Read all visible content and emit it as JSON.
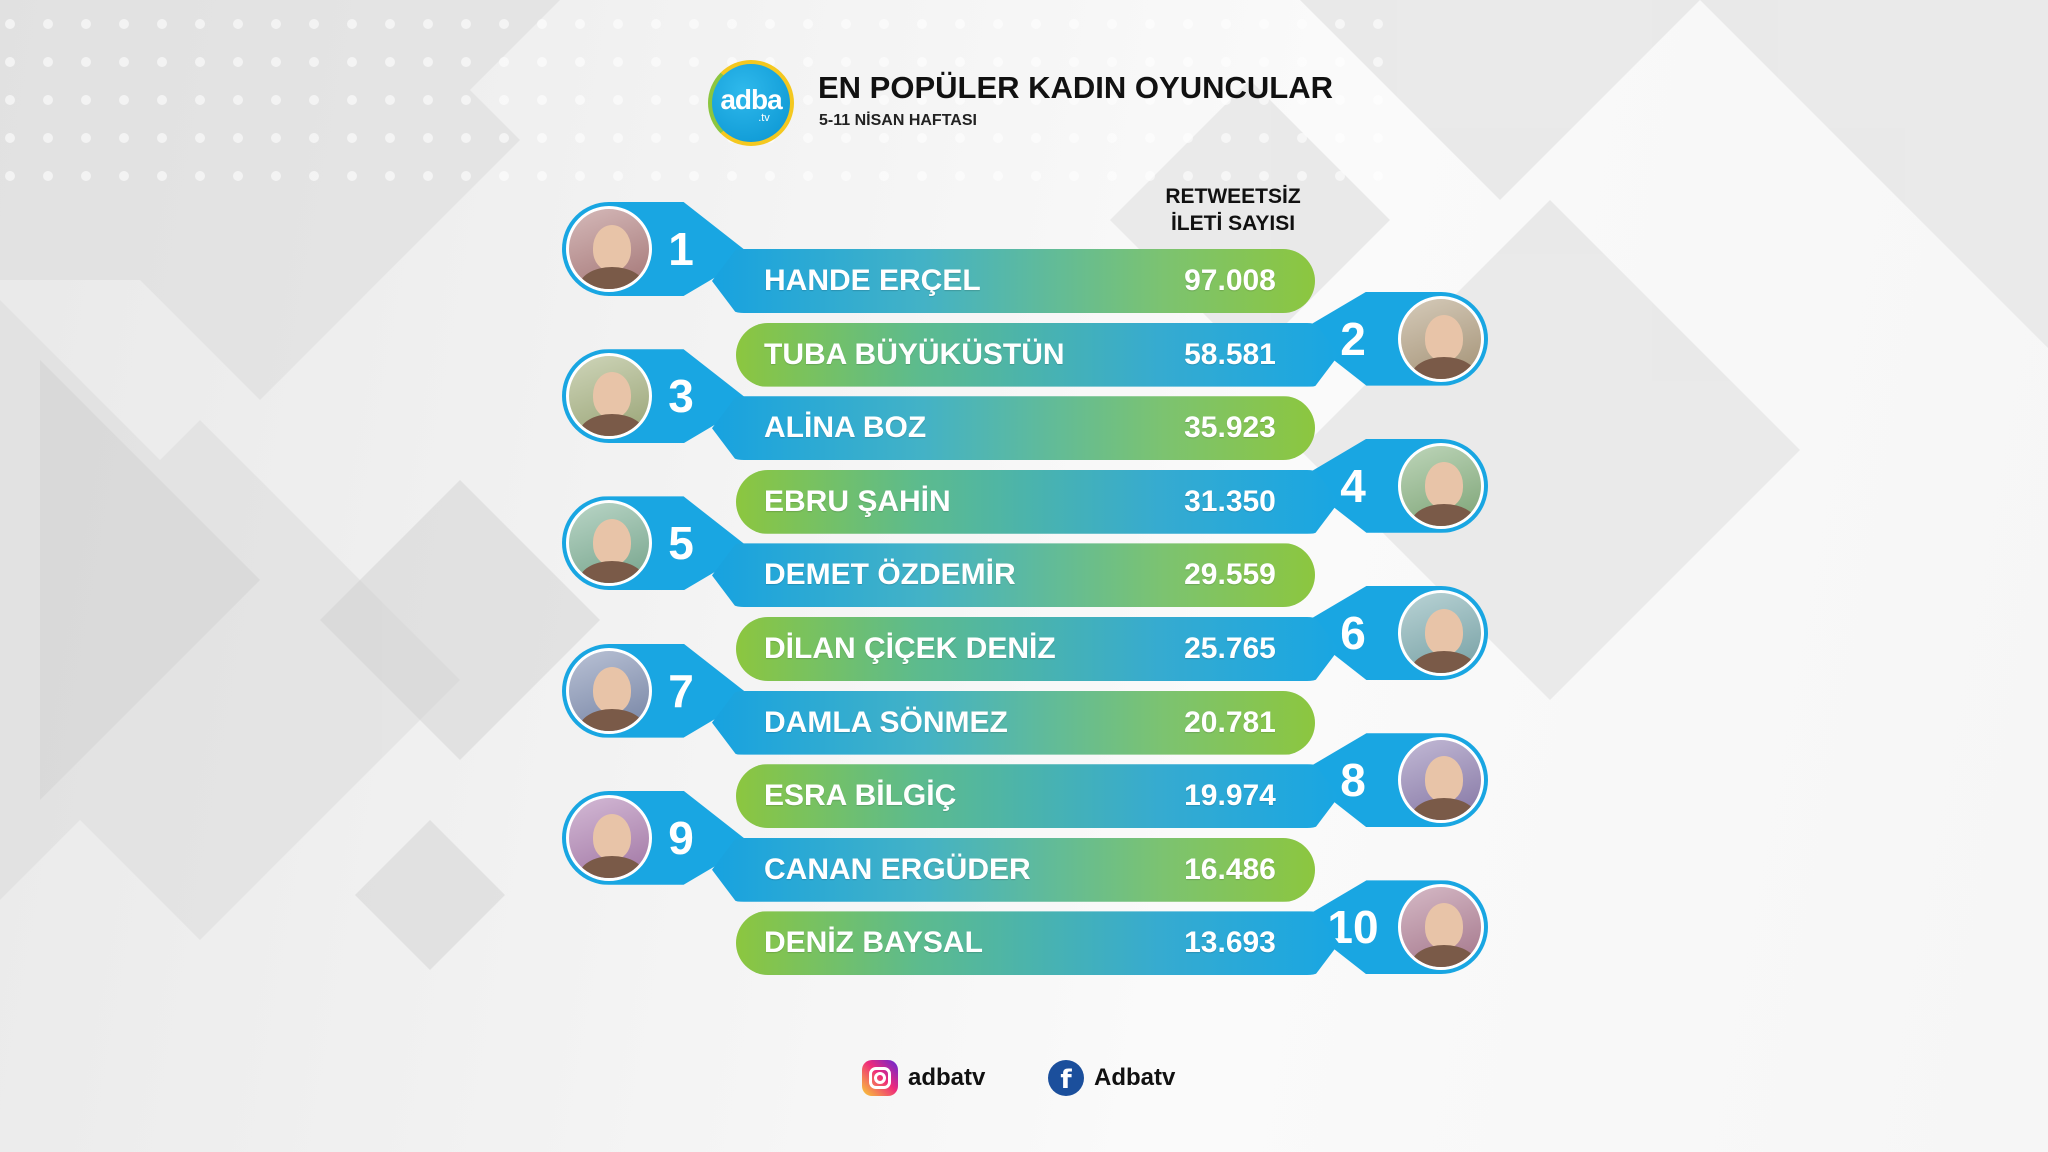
{
  "header": {
    "logo_text": "adba",
    "logo_sub": ".tv",
    "title": "EN POPÜLER KADIN OYUNCULAR",
    "subtitle": "5-11 NİSAN HAFTASI"
  },
  "column_header": {
    "line1": "RETWEETSİZ",
    "line2": "İLETİ SAYISI"
  },
  "chart_data": {
    "type": "bar",
    "title": "EN POPÜLER KADIN OYUNCULAR",
    "subtitle": "5-11 NİSAN HAFTASI",
    "ylabel": "RETWEETSİZ İLETİ SAYISI",
    "categories": [
      "HANDE ERÇEL",
      "TUBA BÜYÜKÜSTÜN",
      "ALİNA BOZ",
      "EBRU ŞAHİN",
      "DEMET ÖZDEMİR",
      "DİLAN ÇİÇEK DENİZ",
      "DAMLA SÖNMEZ",
      "ESRA BİLGİÇ",
      "CANAN ERGÜDER",
      "DENİZ BAYSAL"
    ],
    "ranks": [
      "1",
      "2",
      "3",
      "4",
      "5",
      "6",
      "7",
      "8",
      "9",
      "10"
    ],
    "values": [
      97008,
      58581,
      35923,
      31350,
      29559,
      25765,
      20781,
      19974,
      16486,
      13693
    ],
    "value_labels": [
      "97.008",
      "58.581",
      "35.923",
      "31.350",
      "29.559",
      "25.765",
      "20.781",
      "19.974",
      "16.486",
      "13.693"
    ]
  },
  "footer": {
    "instagram_icon": "instagram-icon",
    "instagram_handle": "adbatv",
    "facebook_icon": "facebook-icon",
    "facebook_handle": "Adbatv"
  },
  "colors": {
    "blue": "#19a6e2",
    "green": "#8cc63f",
    "logo_ring": "#f4c81f"
  }
}
